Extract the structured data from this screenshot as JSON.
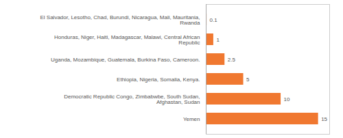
{
  "chart_data": {
    "type": "bar",
    "orientation": "horizontal",
    "categories": [
      "El Salvador, Lesotho, Chad, Burundi, Nicaragua, Mali, Mauritania,\nRwanda",
      "Honduras, Niger, Haiti, Madagascar, Malawi, Central African\nRepublic",
      "Uganda, Mozambique, Guatemala, Burkina Faso, Cameroon.",
      "Ethiopia, Nigeria, Somalia, Kenya.",
      "Democratic Republic Congo, Zimbabwbe, South Sudan,\nAfghastan, Sudan",
      "Yemen"
    ],
    "values": [
      0.1,
      1,
      2.5,
      5,
      10,
      15
    ],
    "color": "#f07830",
    "xlim": [
      0,
      16.5
    ],
    "data_labels": true,
    "tick_labels": "y"
  }
}
